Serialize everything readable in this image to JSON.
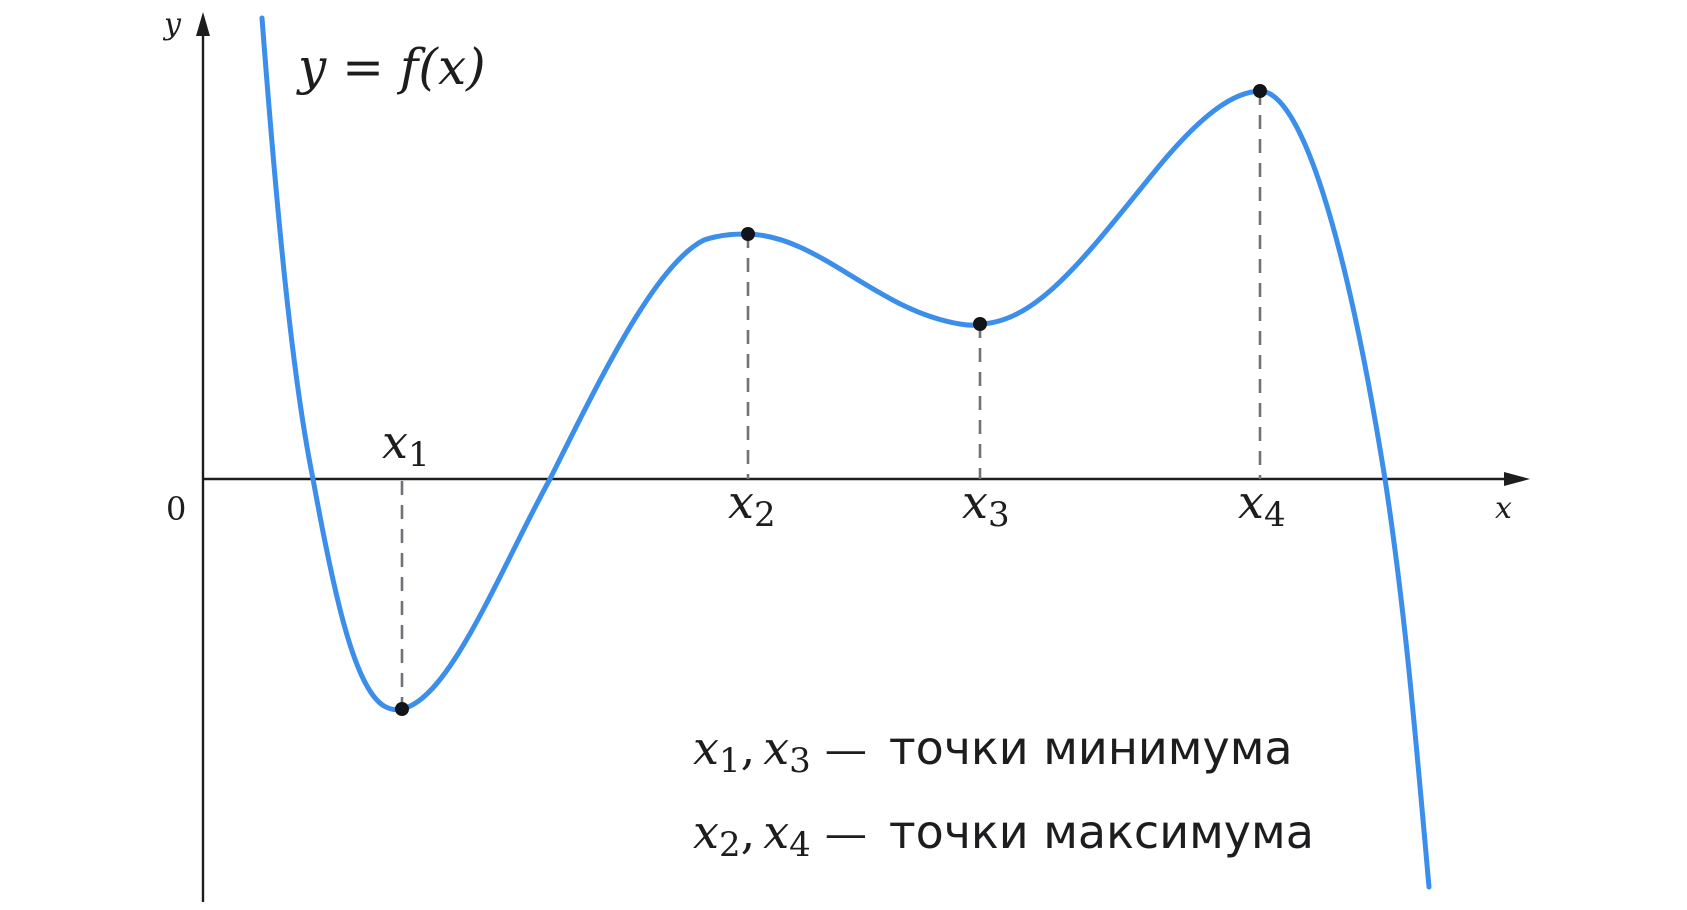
{
  "axes": {
    "x_label": "x",
    "y_label": "y",
    "origin_label": "0"
  },
  "function_label": "y = f(x)",
  "extrema": [
    {
      "id": "x1",
      "base": "x",
      "sub": "1",
      "kind": "minimum"
    },
    {
      "id": "x2",
      "base": "x",
      "sub": "2",
      "kind": "maximum"
    },
    {
      "id": "x3",
      "base": "x",
      "sub": "3",
      "kind": "minimum"
    },
    {
      "id": "x4",
      "base": "x",
      "sub": "4",
      "kind": "maximum"
    }
  ],
  "legend": {
    "minimum": {
      "points": [
        "x1",
        "x3"
      ],
      "dash": "—",
      "text": "точки минимума"
    },
    "maximum": {
      "points": [
        "x2",
        "x4"
      ],
      "dash": "—",
      "text": "точки максимума"
    }
  },
  "colors": {
    "curve": "#3b8eea",
    "axis": "#1d1d1f",
    "guide": "#6f7378",
    "point": "#111418"
  }
}
